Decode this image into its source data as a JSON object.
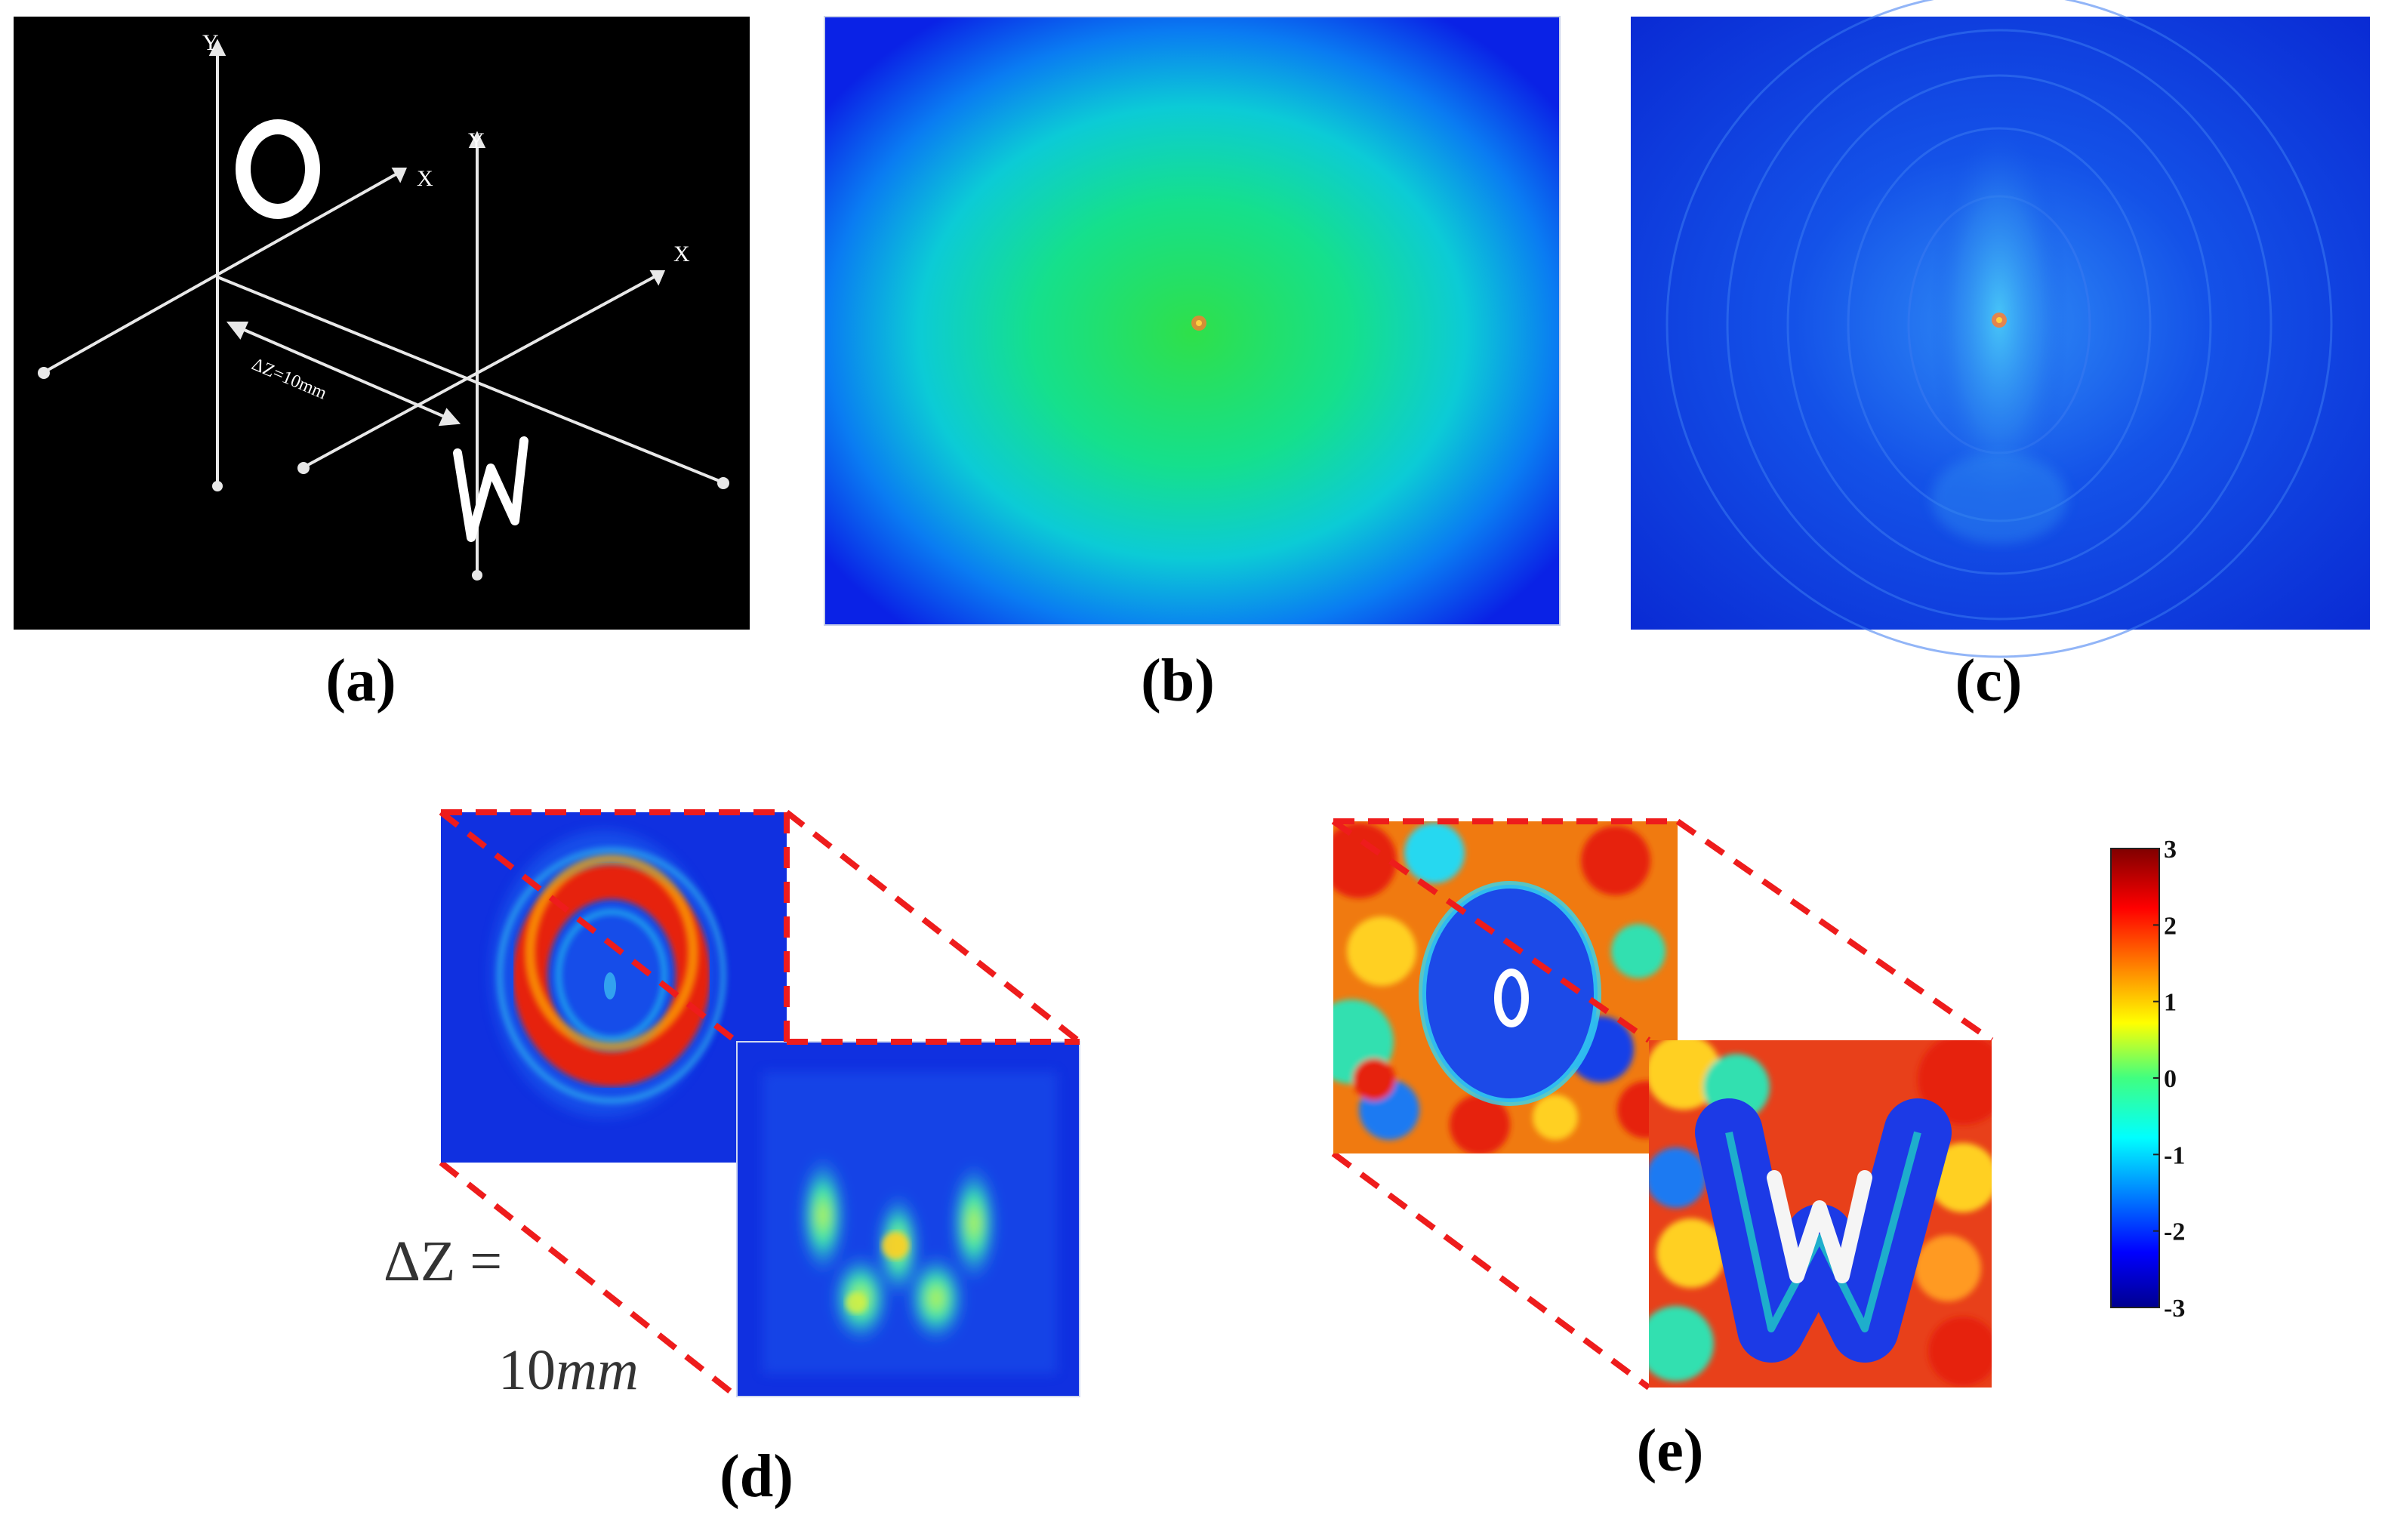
{
  "panels": {
    "a": {
      "caption": "(a)",
      "letter_o": "O",
      "letter_w": "W",
      "axis_y_1": "Y",
      "axis_x_1": "X",
      "axis_y_2": "Y",
      "axis_x_2": "X",
      "distance_label": "ΔZ=10mm"
    },
    "b": {
      "caption": "(b)"
    },
    "c": {
      "caption": "(c)"
    },
    "d": {
      "caption": "(d)",
      "delta_z_label": "ΔZ =",
      "delta_z_value": "10",
      "delta_z_unit": "mm"
    },
    "e": {
      "caption": "(e)"
    }
  },
  "colorbar": {
    "ticks": [
      "3",
      "2",
      "1",
      "0",
      "-1",
      "-2",
      "-3"
    ],
    "range": [
      -3,
      3
    ],
    "colormap": "jet"
  },
  "colors": {
    "background_a": "#000000",
    "guide_dash": "#ee1c1c",
    "caption": "#000000"
  }
}
